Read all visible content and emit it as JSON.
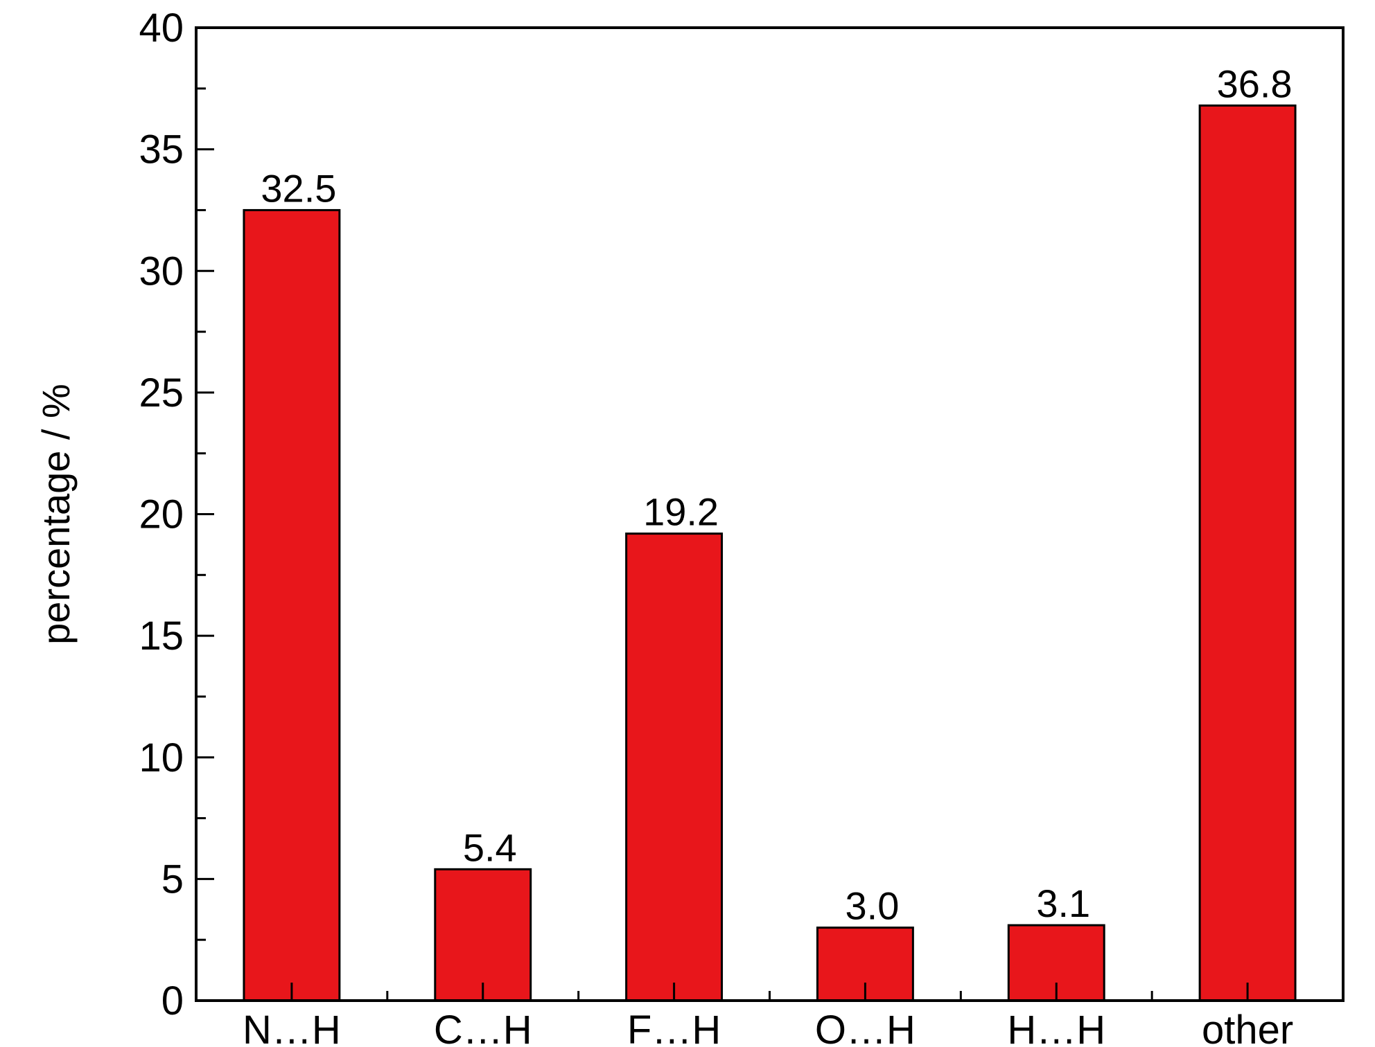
{
  "chart_data": {
    "type": "bar",
    "title": "",
    "xlabel": "",
    "ylabel": "percentage / %",
    "categories": [
      "N…H",
      "C…H",
      "F…H",
      "O…H",
      "H…H",
      "other"
    ],
    "values": [
      32.5,
      5.4,
      19.2,
      3.0,
      3.1,
      36.8
    ],
    "value_labels": [
      "32.5",
      "5.4",
      "19.2",
      "3.0",
      "3.1",
      "36.8"
    ],
    "ylim": [
      0,
      40
    ],
    "yticks": [
      0,
      5,
      10,
      15,
      20,
      25,
      30,
      35,
      40
    ],
    "ytick_labels": [
      "0",
      "5",
      "10",
      "15",
      "20",
      "25",
      "30",
      "35",
      "40"
    ],
    "ytick_minor_step": 2.5,
    "grid": false,
    "legend": "none",
    "colors": {
      "bar": "#e8161b",
      "bar_edge": "#000000",
      "axis": "#000000"
    }
  }
}
